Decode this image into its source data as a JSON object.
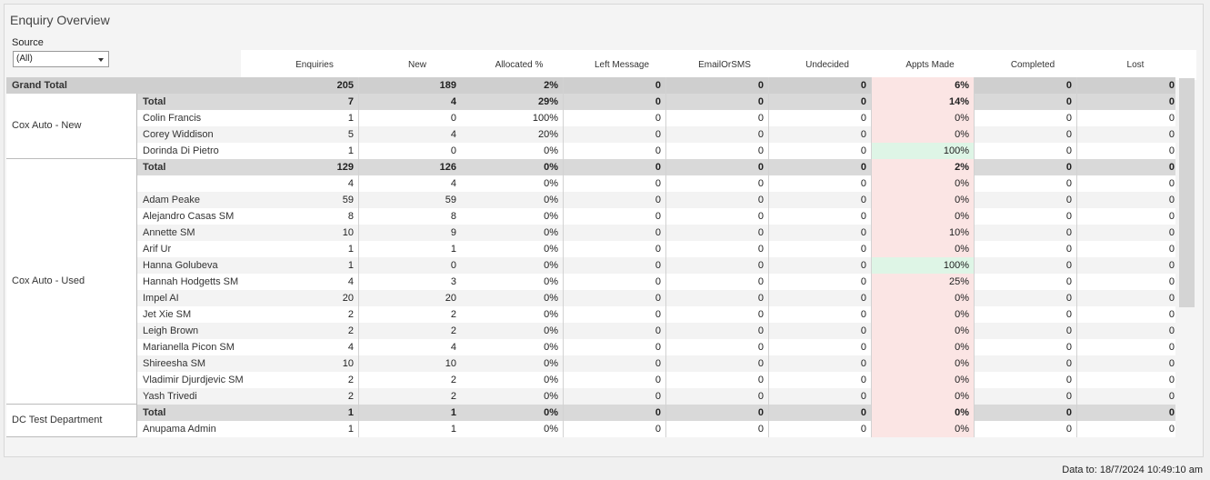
{
  "title": "Enquiry Overview",
  "filter": {
    "label": "Source",
    "value": "(All)"
  },
  "columns": [
    "Enquiries",
    "New",
    "Allocated %",
    "Left Message",
    "EmailOrSMS",
    "Undecided",
    "Appts Made",
    "Completed",
    "Lost"
  ],
  "grand_total": {
    "label": "Grand Total",
    "values": [
      "205",
      "189",
      "2%",
      "0",
      "0",
      "0",
      "6%",
      "0",
      "0"
    ]
  },
  "groups": [
    {
      "name": "Cox Auto - New",
      "total": {
        "label": "Total",
        "values": [
          "7",
          "4",
          "29%",
          "0",
          "0",
          "0",
          "14%",
          "0",
          "0"
        ]
      },
      "rows": [
        {
          "name": "Colin Francis",
          "values": [
            "1",
            "0",
            "100%",
            "0",
            "0",
            "0",
            "0%",
            "0",
            "0"
          ]
        },
        {
          "name": "Corey Widdison",
          "values": [
            "5",
            "4",
            "20%",
            "0",
            "0",
            "0",
            "0%",
            "0",
            "0"
          ]
        },
        {
          "name": "Dorinda  Di Pietro",
          "values": [
            "1",
            "0",
            "0%",
            "0",
            "0",
            "0",
            "100%",
            "0",
            "0"
          ]
        }
      ]
    },
    {
      "name": "Cox Auto - Used",
      "total": {
        "label": "Total",
        "values": [
          "129",
          "126",
          "0%",
          "0",
          "0",
          "0",
          "2%",
          "0",
          "0"
        ]
      },
      "rows": [
        {
          "name": "",
          "values": [
            "4",
            "4",
            "0%",
            "0",
            "0",
            "0",
            "0%",
            "0",
            "0"
          ]
        },
        {
          "name": "Adam Peake",
          "values": [
            "59",
            "59",
            "0%",
            "0",
            "0",
            "0",
            "0%",
            "0",
            "0"
          ]
        },
        {
          "name": "Alejandro Casas SM",
          "values": [
            "8",
            "8",
            "0%",
            "0",
            "0",
            "0",
            "0%",
            "0",
            "0"
          ]
        },
        {
          "name": "Annette SM",
          "values": [
            "10",
            "9",
            "0%",
            "0",
            "0",
            "0",
            "10%",
            "0",
            "0"
          ]
        },
        {
          "name": "Arif Ur",
          "values": [
            "1",
            "1",
            "0%",
            "0",
            "0",
            "0",
            "0%",
            "0",
            "0"
          ]
        },
        {
          "name": "Hanna Golubeva",
          "values": [
            "1",
            "0",
            "0%",
            "0",
            "0",
            "0",
            "100%",
            "0",
            "0"
          ]
        },
        {
          "name": "Hannah Hodgetts SM",
          "values": [
            "4",
            "3",
            "0%",
            "0",
            "0",
            "0",
            "25%",
            "0",
            "0"
          ]
        },
        {
          "name": "Impel AI",
          "values": [
            "20",
            "20",
            "0%",
            "0",
            "0",
            "0",
            "0%",
            "0",
            "0"
          ]
        },
        {
          "name": "Jet Xie SM",
          "values": [
            "2",
            "2",
            "0%",
            "0",
            "0",
            "0",
            "0%",
            "0",
            "0"
          ]
        },
        {
          "name": "Leigh Brown",
          "values": [
            "2",
            "2",
            "0%",
            "0",
            "0",
            "0",
            "0%",
            "0",
            "0"
          ]
        },
        {
          "name": "Marianella Picon SM",
          "values": [
            "4",
            "4",
            "0%",
            "0",
            "0",
            "0",
            "0%",
            "0",
            "0"
          ]
        },
        {
          "name": "Shireesha SM",
          "values": [
            "10",
            "10",
            "0%",
            "0",
            "0",
            "0",
            "0%",
            "0",
            "0"
          ]
        },
        {
          "name": "Vladimir Djurdjevic SM",
          "values": [
            "2",
            "2",
            "0%",
            "0",
            "0",
            "0",
            "0%",
            "0",
            "0"
          ]
        },
        {
          "name": "Yash Trivedi",
          "values": [
            "2",
            "2",
            "0%",
            "0",
            "0",
            "0",
            "0%",
            "0",
            "0"
          ]
        }
      ]
    },
    {
      "name": "DC Test Department",
      "total": {
        "label": "Total",
        "values": [
          "1",
          "1",
          "0%",
          "0",
          "0",
          "0",
          "0%",
          "0",
          "0"
        ]
      },
      "rows": [
        {
          "name": "Anupama Admin",
          "values": [
            "1",
            "1",
            "0%",
            "0",
            "0",
            "0",
            "0%",
            "0",
            "0"
          ]
        }
      ]
    }
  ],
  "highlight_colors": {
    "low": "#fbe5e4",
    "high": "#def5e6"
  },
  "footer": "Data to: 18/7/2024 10:49:10 am"
}
